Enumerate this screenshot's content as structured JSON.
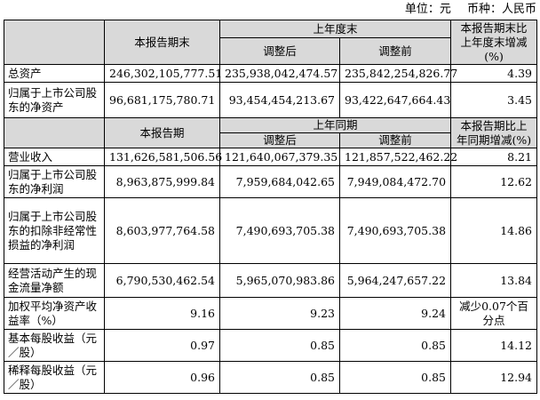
{
  "unit_line": {
    "unit": "单位：元",
    "currency": "币种：人民币"
  },
  "section1": {
    "header": {
      "current": "本报告期末",
      "prior_group": "上年度末",
      "adjusted": "调整后",
      "before_adj": "调整前",
      "change": "本报告期末比上年度末增减(%)"
    },
    "rows": [
      {
        "label": "总资产",
        "current": "246,302,105,777.51",
        "adjusted": "235,938,042,474.57",
        "before": "235,842,254,826.77",
        "change": "4.39"
      },
      {
        "label": "归属于上市公司股东的净资产",
        "current": "96,681,175,780.71",
        "adjusted": "93,454,454,213.67",
        "before": "93,422,647,664.43",
        "change": "3.45"
      }
    ]
  },
  "section2": {
    "header": {
      "current": "本报告期",
      "prior_group": "上年同期",
      "adjusted": "调整后",
      "before_adj": "调整前",
      "change": "本报告期比上年同期增减(%)"
    },
    "rows": [
      {
        "label": "营业收入",
        "current": "131,626,581,506.56",
        "adjusted": "121,640,067,379.35",
        "before": "121,857,522,462.22",
        "change": "8.21"
      },
      {
        "label": "归属于上市公司股东的净利润",
        "current": "8,963,875,999.84",
        "adjusted": "7,959,684,042.65",
        "before": "7,949,084,472.70",
        "change": "12.62"
      },
      {
        "label": "归属于上市公司股东的扣除非经常性损益的净利润",
        "current": "8,603,977,764.58",
        "adjusted": "7,490,693,705.38",
        "before": "7,490,693,705.38",
        "change": "14.86"
      },
      {
        "label": "经营活动产生的现金流量净额",
        "current": "6,790,530,462.54",
        "adjusted": "5,965,070,983.86",
        "before": "5,964,247,657.22",
        "change": "13.84"
      },
      {
        "label": "加权平均净资产收益率（%）",
        "current": "9.16",
        "adjusted": "9.23",
        "before": "9.24",
        "change": "减少0.07个百分点"
      },
      {
        "label": "基本每股收益（元／股）",
        "current": "0.97",
        "adjusted": "0.85",
        "before": "0.85",
        "change": "14.12"
      },
      {
        "label": "稀释每股收益（元／股）",
        "current": "0.96",
        "adjusted": "0.85",
        "before": "0.85",
        "change": "12.94"
      }
    ]
  }
}
